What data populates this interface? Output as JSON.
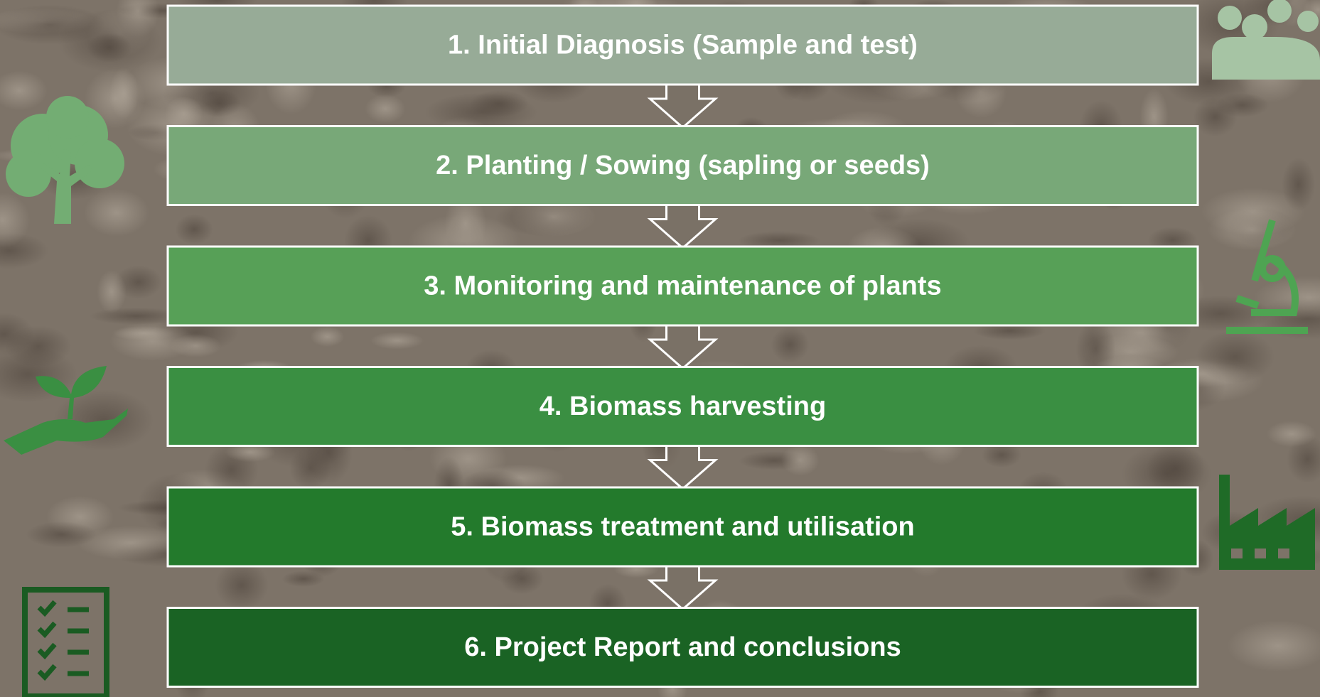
{
  "steps": [
    {
      "label": "1. Initial Diagnosis (Sample and test)"
    },
    {
      "label": "2. Planting / Sowing (sapling or seeds)"
    },
    {
      "label": "3. Monitoring and maintenance of plants"
    },
    {
      "label": "4. Biomass harvesting"
    },
    {
      "label": "5. Biomass treatment and utilisation"
    },
    {
      "label": "6. Project Report and conclusions"
    }
  ]
}
